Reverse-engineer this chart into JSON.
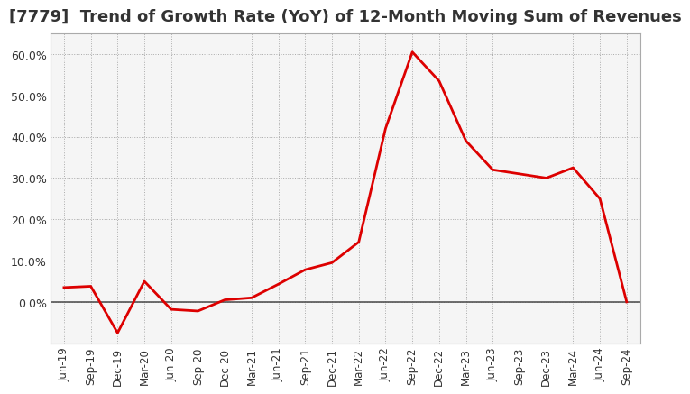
{
  "title": "[7779]  Trend of Growth Rate (YoY) of 12-Month Moving Sum of Revenues",
  "title_fontsize": 13,
  "x_labels": [
    "Jun-19",
    "Sep-19",
    "Dec-19",
    "Mar-20",
    "Jun-20",
    "Sep-20",
    "Dec-20",
    "Mar-21",
    "Jun-21",
    "Sep-21",
    "Dec-21",
    "Mar-22",
    "Jun-22",
    "Sep-22",
    "Dec-22",
    "Mar-23",
    "Jun-23",
    "Sep-23",
    "Dec-23",
    "Mar-24",
    "Jun-24",
    "Sep-24"
  ],
  "y_values": [
    0.035,
    0.038,
    -0.075,
    0.05,
    -0.018,
    -0.022,
    0.005,
    0.01,
    0.043,
    0.078,
    0.095,
    0.145,
    0.42,
    0.605,
    0.535,
    0.39,
    0.32,
    0.31,
    0.3,
    0.325,
    0.25,
    0.0
  ],
  "ylim": [
    -0.1,
    0.65
  ],
  "yticks": [
    0.0,
    0.1,
    0.2,
    0.3,
    0.4,
    0.5,
    0.6
  ],
  "ytick_labels": [
    "0.0%",
    "10.0%",
    "20.0%",
    "30.0%",
    "40.0%",
    "50.0%",
    "60.0%"
  ],
  "line_color": "#dd0000",
  "background_color": "#ffffff",
  "plot_bg_color": "#f5f5f5",
  "grid_color": "#aaaaaa",
  "tick_color": "#333333",
  "title_color": "#333333",
  "zero_line_color": "#555555"
}
